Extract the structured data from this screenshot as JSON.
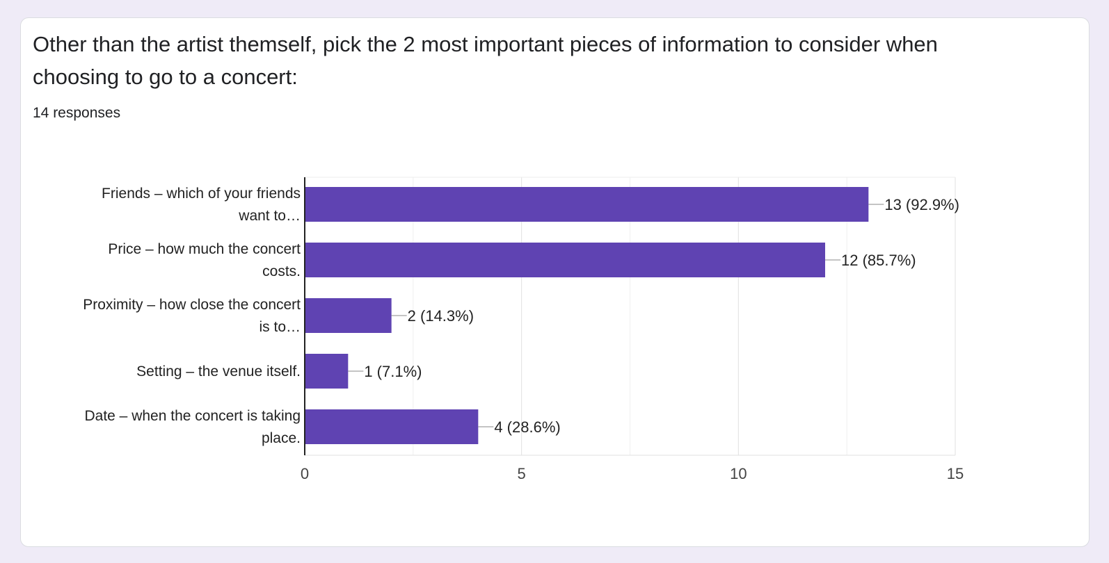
{
  "question": {
    "title": "Other than the artist themself, pick the 2 most important pieces of information to consider when choosing to go to a concert:",
    "responses": "14 responses"
  },
  "colors": {
    "bar": "#5f43b2",
    "background": "#efebf7",
    "card": "#ffffff"
  },
  "chart_data": {
    "type": "bar",
    "orientation": "horizontal",
    "categories": [
      [
        "Friends – which of your friends",
        "want to…"
      ],
      [
        "Price – how much the concert",
        "costs."
      ],
      [
        "Proximity – how close the concert",
        "is to…"
      ],
      [
        "Setting – the venue itself."
      ],
      [
        "Date – when the concert is taking",
        "place."
      ]
    ],
    "values": [
      13,
      12,
      2,
      1,
      4
    ],
    "data_labels": [
      "13 (92.9%)",
      "12 (85.7%)",
      "2 (14.3%)",
      "1 (7.1%)",
      "4 (28.6%)"
    ],
    "xlim": [
      0,
      15
    ],
    "xticks": [
      "0",
      "5",
      "10",
      "15"
    ],
    "grid": true,
    "legend": "none"
  }
}
